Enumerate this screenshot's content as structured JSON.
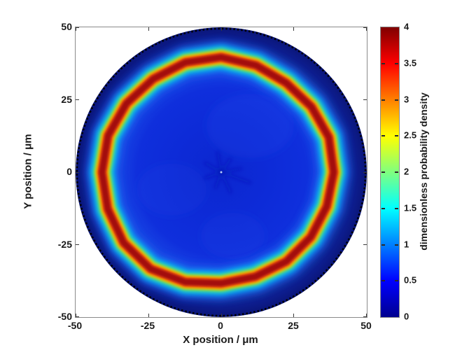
{
  "figure": {
    "background": "#ffffff",
    "axis_color": "#8a8a8a",
    "text_color": "#1a1a1a"
  },
  "chart_data": {
    "type": "heatmap",
    "title": "",
    "xlabel": "X position / μm",
    "ylabel": "Y position / μm",
    "x_range": [
      -50,
      50
    ],
    "y_range": [
      -50,
      50
    ],
    "x_ticks": [
      "-50",
      "-25",
      "0",
      "25",
      "50"
    ],
    "y_ticks": [
      "50",
      "25",
      "0",
      "-25",
      "-50"
    ],
    "grid": false,
    "colormap": "jet",
    "colorbar": {
      "label": "dimensionless probability density",
      "range": [
        0,
        4
      ],
      "ticks": [
        "0",
        "0.5",
        "1",
        "1.5",
        "2",
        "2.5",
        "3",
        "3.5",
        "4"
      ],
      "position": "right"
    },
    "domain": {
      "shape": "circle",
      "radius_um": 50,
      "boundary_style": "dotted-black",
      "outside_color": "#ffffff"
    },
    "ring": {
      "peak_radius_um": 39,
      "radius_wobble_um": 1.8,
      "peak_value": 4,
      "band_halfwidth_um": 2
    },
    "radial_profile": [
      {
        "r_um": 0,
        "value": 0.55
      },
      {
        "r_um": 20,
        "value": 0.55
      },
      {
        "r_um": 30,
        "value": 0.7
      },
      {
        "r_um": 34,
        "value": 1.2
      },
      {
        "r_um": 36,
        "value": 2.0
      },
      {
        "r_um": 37,
        "value": 3.0
      },
      {
        "r_um": 39,
        "value": 4.0
      },
      {
        "r_um": 41,
        "value": 4.0
      },
      {
        "r_um": 42.5,
        "value": 3.0
      },
      {
        "r_um": 44,
        "value": 2.0
      },
      {
        "r_um": 46,
        "value": 1.0
      },
      {
        "r_um": 48,
        "value": 0.4
      },
      {
        "r_um": 50,
        "value": 0.2
      }
    ],
    "center_feature": "faint darker radial star pattern with tiny bright spot at origin"
  },
  "colors": {
    "jet_stops": [
      [
        "0%",
        "#00008f"
      ],
      [
        "12.5%",
        "#0000ff"
      ],
      [
        "37.5%",
        "#00ffff"
      ],
      [
        "62.5%",
        "#ffff00"
      ],
      [
        "87.5%",
        "#ff0000"
      ],
      [
        "100%",
        "#800000"
      ]
    ],
    "interior_blue": "#0d2bd9",
    "edge_navy": "#0a1578",
    "ring_core_red": "#a30d0c"
  }
}
